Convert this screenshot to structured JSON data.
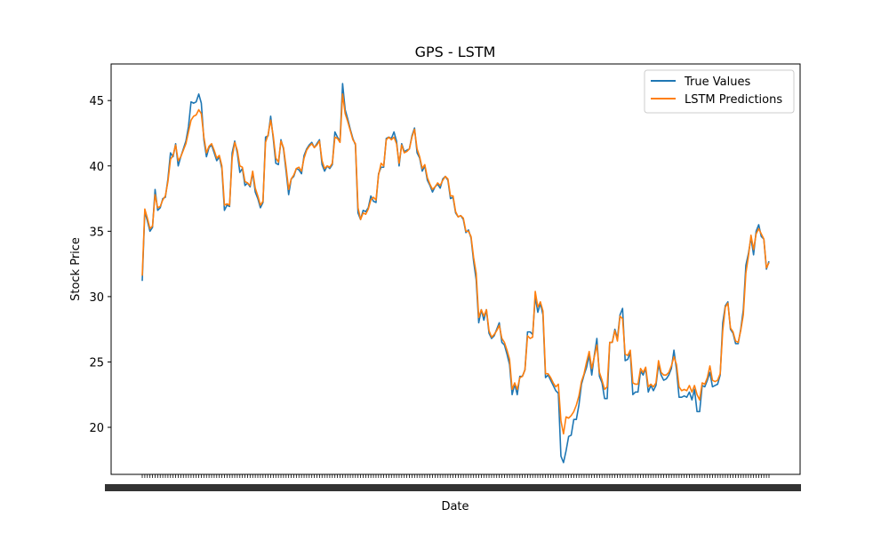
{
  "chart_data": {
    "type": "line",
    "title": "GPS - LSTM",
    "xlabel": "Date",
    "ylabel": "Stock Price",
    "ylim": [
      16.4,
      47.8
    ],
    "yticks": [
      20,
      25,
      30,
      35,
      40,
      45
    ],
    "grid": false,
    "legend_position": "top-right",
    "x_tick_labels_note": "",
    "series": [
      {
        "name": "True Values",
        "color": "#1f77b4",
        "values": [
          31.2,
          36.5,
          35.8,
          35.0,
          35.3,
          38.2,
          36.6,
          36.8,
          37.5,
          37.6,
          39.0,
          41.0,
          40.7,
          41.7,
          40.0,
          40.7,
          41.3,
          41.9,
          43.0,
          44.9,
          44.8,
          44.9,
          45.5,
          44.8,
          42.0,
          40.7,
          41.4,
          41.6,
          41.0,
          40.4,
          40.7,
          39.8,
          36.6,
          37.0,
          36.9,
          41.0,
          41.9,
          41.0,
          39.5,
          39.8,
          38.5,
          38.7,
          38.4,
          39.5,
          38.0,
          37.5,
          36.8,
          37.2,
          42.2,
          42.3,
          43.8,
          42.1,
          40.2,
          40.1,
          42.0,
          41.3,
          39.6,
          37.8,
          39.0,
          39.2,
          39.8,
          39.7,
          39.4,
          40.8,
          41.3,
          41.6,
          41.8,
          41.4,
          41.7,
          42.0,
          40.1,
          39.6,
          40.0,
          39.8,
          40.1,
          42.6,
          42.2,
          41.9,
          46.3,
          44.3,
          43.6,
          42.8,
          42.1,
          41.6,
          36.4,
          35.9,
          36.6,
          36.5,
          36.8,
          37.7,
          37.3,
          37.2,
          39.4,
          39.9,
          39.9,
          42.1,
          42.2,
          42.1,
          42.6,
          41.9,
          40.0,
          41.7,
          41.1,
          41.2,
          41.3,
          42.3,
          42.9,
          41.0,
          40.6,
          39.6,
          40.0,
          38.9,
          38.5,
          38.0,
          38.4,
          38.6,
          38.3,
          39.0,
          39.2,
          38.9,
          37.5,
          37.6,
          36.4,
          36.1,
          36.2,
          35.9,
          34.9,
          35.1,
          34.5,
          32.7,
          31.3,
          28.0,
          29.0,
          28.2,
          29.0,
          27.2,
          26.8,
          27.0,
          27.5,
          28.0,
          26.5,
          26.3,
          25.6,
          24.8,
          22.5,
          23.3,
          22.5,
          23.9,
          23.9,
          24.4,
          27.3,
          27.3,
          27.1,
          30.0,
          28.8,
          29.5,
          28.6,
          23.8,
          24.0,
          23.6,
          23.2,
          22.8,
          22.6,
          17.8,
          17.3,
          18.2,
          19.3,
          19.4,
          20.6,
          20.6,
          21.7,
          23.3,
          24.0,
          24.6,
          25.5,
          24.0,
          25.5,
          26.8,
          23.9,
          23.4,
          22.2,
          22.2,
          26.5,
          26.5,
          27.5,
          26.8,
          28.6,
          29.1,
          25.1,
          25.2,
          25.7,
          22.5,
          22.7,
          22.7,
          24.3,
          24.0,
          24.5,
          22.7,
          23.2,
          22.8,
          23.2,
          24.8,
          24.0,
          23.6,
          23.7,
          24.0,
          24.5,
          25.9,
          24.4,
          22.3,
          22.3,
          22.4,
          22.3,
          22.7,
          22.1,
          22.9,
          21.2,
          21.2,
          23.2,
          23.1,
          23.6,
          24.2,
          23.1,
          23.2,
          23.3,
          24.0,
          28.0,
          29.3,
          29.6,
          27.5,
          27.2,
          26.4,
          26.4,
          27.5,
          29.0,
          32.4,
          33.3,
          34.5,
          33.2,
          35.0,
          35.5,
          34.6,
          34.4,
          32.1,
          32.7
        ]
      },
      {
        "name": "LSTM Predictions",
        "color": "#ff7f0e",
        "values": [
          31.6,
          36.7,
          36.0,
          35.2,
          35.4,
          37.8,
          36.8,
          36.9,
          37.4,
          37.7,
          38.8,
          40.5,
          40.8,
          41.6,
          40.4,
          40.7,
          41.2,
          41.7,
          42.6,
          43.5,
          43.8,
          43.9,
          44.3,
          44.0,
          42.2,
          41.0,
          41.5,
          41.7,
          41.2,
          40.6,
          40.8,
          40.0,
          37.0,
          37.1,
          37.0,
          40.6,
          41.8,
          41.2,
          40.0,
          39.9,
          38.8,
          38.7,
          38.5,
          39.6,
          38.3,
          37.7,
          37.0,
          37.3,
          41.8,
          42.4,
          43.5,
          42.3,
          40.6,
          40.3,
          41.9,
          41.4,
          39.9,
          38.2,
          39.0,
          39.3,
          39.8,
          39.9,
          39.6,
          40.6,
          41.2,
          41.5,
          41.7,
          41.4,
          41.6,
          41.9,
          40.4,
          39.8,
          40.0,
          39.9,
          40.2,
          42.2,
          42.1,
          41.8,
          45.5,
          44.0,
          43.4,
          42.7,
          42.0,
          41.7,
          36.8,
          35.9,
          36.4,
          36.3,
          36.7,
          37.4,
          37.6,
          37.4,
          39.3,
          40.2,
          40.0,
          42.0,
          42.2,
          42.0,
          42.2,
          41.7,
          40.2,
          41.6,
          41.0,
          41.1,
          41.3,
          42.2,
          42.8,
          41.3,
          40.7,
          39.8,
          40.1,
          39.1,
          38.6,
          38.2,
          38.4,
          38.7,
          38.5,
          38.9,
          39.2,
          39.0,
          37.7,
          37.7,
          36.5,
          36.1,
          36.2,
          36.0,
          35.0,
          35.0,
          34.6,
          33.0,
          31.8,
          28.4,
          29.0,
          28.5,
          29.0,
          27.4,
          26.9,
          27.1,
          27.4,
          27.8,
          26.8,
          26.5,
          25.9,
          25.2,
          22.9,
          23.4,
          22.9,
          23.8,
          23.9,
          24.4,
          27.0,
          26.8,
          26.9,
          30.4,
          29.2,
          29.6,
          28.9,
          24.1,
          24.1,
          23.8,
          23.4,
          23.1,
          23.3,
          20.5,
          19.5,
          20.8,
          20.7,
          20.9,
          21.2,
          21.7,
          22.4,
          23.5,
          24.1,
          25.0,
          25.8,
          24.5,
          25.4,
          26.3,
          24.2,
          23.6,
          22.9,
          23.1,
          26.5,
          26.5,
          27.4,
          26.6,
          28.5,
          28.3,
          25.6,
          25.5,
          25.9,
          23.4,
          23.3,
          23.3,
          24.5,
          24.2,
          24.6,
          23.1,
          23.3,
          23.1,
          23.4,
          25.1,
          24.2,
          24.0,
          24.0,
          24.2,
          24.7,
          25.4,
          24.8,
          23.1,
          22.8,
          22.9,
          22.8,
          23.2,
          22.7,
          23.2,
          22.5,
          22.1,
          23.4,
          23.3,
          23.8,
          24.7,
          23.6,
          23.5,
          23.6,
          24.1,
          27.4,
          29.2,
          29.5,
          27.6,
          27.3,
          26.6,
          26.5,
          27.4,
          28.6,
          31.8,
          33.1,
          34.7,
          33.6,
          34.8,
          35.2,
          34.8,
          34.4,
          32.2,
          32.6
        ]
      }
    ]
  }
}
